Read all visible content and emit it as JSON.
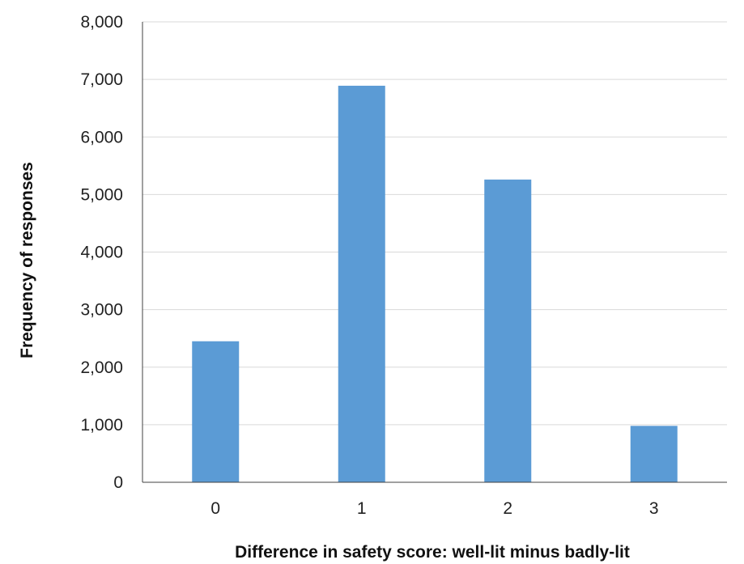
{
  "chart_data": {
    "type": "bar",
    "title": "",
    "xlabel": "Difference in safety score: well-lit minus badly-lit",
    "ylabel": "Frequency of responses",
    "categories": [
      "0",
      "1",
      "2",
      "3"
    ],
    "values": [
      2450,
      6890,
      5260,
      980
    ],
    "ylim": [
      0,
      8000
    ],
    "yticks": [
      0,
      1000,
      2000,
      3000,
      4000,
      5000,
      6000,
      7000,
      8000
    ],
    "ytick_labels": [
      "0",
      "1,000",
      "2,000",
      "3,000",
      "4,000",
      "5,000",
      "6,000",
      "7,000",
      "8,000"
    ],
    "grid": true,
    "legend": "none",
    "colors": {
      "bar": "#5b9bd5",
      "grid": "#d9d9d9",
      "axis": "#404040"
    }
  }
}
